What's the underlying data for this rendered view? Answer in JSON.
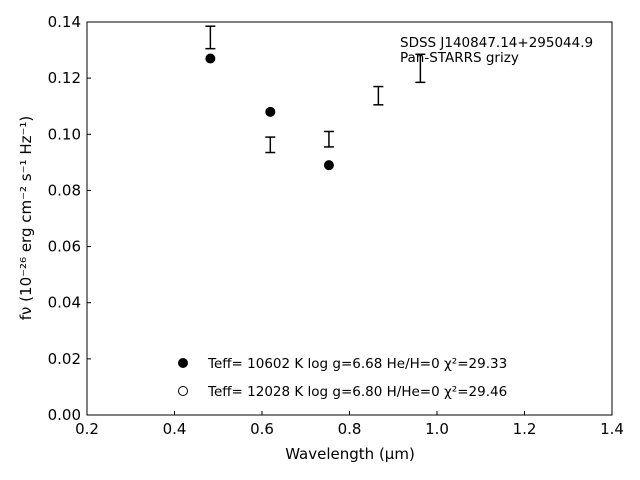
{
  "chart_data": {
    "type": "scatter",
    "xlabel": "Wavelength (μm)",
    "ylabel": "fν (10⁻²⁶ erg cm⁻² s⁻¹ Hz⁻¹)",
    "xlim": [
      0.2,
      1.4
    ],
    "ylim": [
      0.0,
      0.14
    ],
    "x_ticks": [
      "0.2",
      "0.4",
      "0.6",
      "0.8",
      "1.0",
      "1.2",
      "1.4"
    ],
    "y_ticks": [
      "0.00",
      "0.02",
      "0.04",
      "0.06",
      "0.08",
      "0.10",
      "0.12",
      "0.14"
    ],
    "annotation": [
      "SDSS J140847.14+295044.9",
      "Pan-STARRS grizy"
    ],
    "observed": [
      {
        "x": 0.482,
        "y_low": 0.1305,
        "y_high": 0.1385
      },
      {
        "x": 0.619,
        "y_low": 0.0935,
        "y_high": 0.099
      },
      {
        "x": 0.753,
        "y_low": 0.0955,
        "y_high": 0.101
      },
      {
        "x": 0.866,
        "y_low": 0.1105,
        "y_high": 0.117
      },
      {
        "x": 0.962,
        "y_low": 0.1185,
        "y_high": 0.1285
      }
    ],
    "series": [
      {
        "name": "Teff= 10602 K  log g=6.68  He/H=0  χ²=29.33",
        "marker": "filled-circle",
        "points": [
          {
            "x": 0.482,
            "y": 0.127
          },
          {
            "x": 0.619,
            "y": 0.108
          },
          {
            "x": 0.753,
            "y": 0.089
          }
        ]
      },
      {
        "name": "Teff= 12028 K  log g=6.80  H/He=0  χ²=29.46",
        "marker": "open-circle",
        "points": []
      }
    ],
    "legend_position": "bottom-center"
  }
}
